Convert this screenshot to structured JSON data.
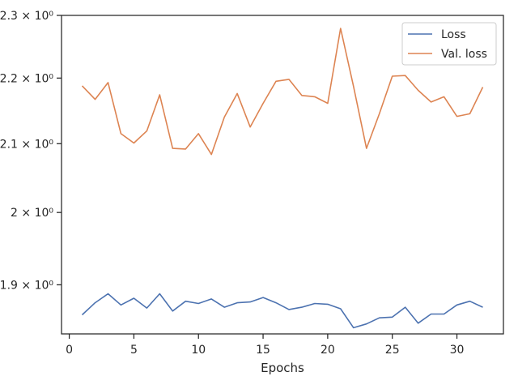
{
  "chart_data": {
    "type": "line",
    "xlabel": "Epochs",
    "ylabel": "",
    "xlim": [
      -0.6,
      33.6
    ],
    "ylim": [
      1.835,
      2.3
    ],
    "yscale": "log",
    "grid": false,
    "legend_position": "top-right",
    "x_ticks": [
      0,
      5,
      10,
      15,
      20,
      25,
      30
    ],
    "x_tick_labels": [
      "0",
      "5",
      "10",
      "15",
      "20",
      "25",
      "30"
    ],
    "y_ticks": [
      1.9,
      2.0,
      2.1,
      2.2,
      2.3
    ],
    "y_tick_labels": [
      "1.9 × 10⁰",
      "2 × 10⁰",
      "2.1 × 10⁰",
      "2.2 × 10⁰",
      "2.3 × 10⁰"
    ],
    "x": [
      1,
      2,
      3,
      4,
      5,
      6,
      7,
      8,
      9,
      10,
      11,
      12,
      13,
      14,
      15,
      16,
      17,
      18,
      19,
      20,
      21,
      22,
      23,
      24,
      25,
      26,
      27,
      28,
      29,
      30,
      31,
      32
    ],
    "series": [
      {
        "name": "Loss",
        "color": "#4c72b0",
        "values": [
          1.86,
          1.876,
          1.888,
          1.873,
          1.882,
          1.869,
          1.888,
          1.865,
          1.878,
          1.875,
          1.881,
          1.87,
          1.876,
          1.877,
          1.883,
          1.876,
          1.867,
          1.87,
          1.875,
          1.874,
          1.868,
          1.843,
          1.848,
          1.856,
          1.857,
          1.87,
          1.849,
          1.861,
          1.861,
          1.873,
          1.878,
          1.87
        ]
      },
      {
        "name": "Val. loss",
        "color": "#dd8452",
        "values": [
          2.188,
          2.167,
          2.193,
          2.115,
          2.101,
          2.119,
          2.174,
          2.093,
          2.092,
          2.115,
          2.084,
          2.14,
          2.176,
          2.125,
          2.161,
          2.195,
          2.198,
          2.173,
          2.171,
          2.161,
          2.279,
          2.187,
          2.093,
          2.145,
          2.203,
          2.204,
          2.181,
          2.163,
          2.171,
          2.141,
          2.145,
          2.186
        ]
      }
    ]
  }
}
